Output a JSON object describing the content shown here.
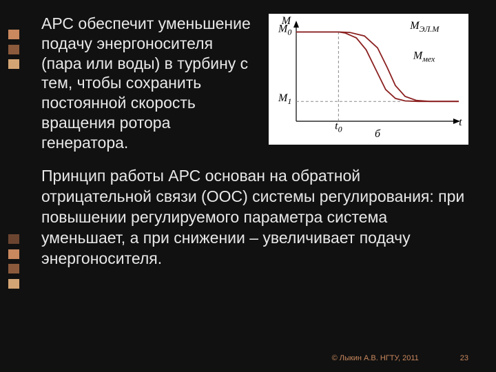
{
  "accent_colors": [
    "#c9885e",
    "#8b5a3c",
    "#d4a574",
    "#6b4430"
  ],
  "paragraphs": {
    "p1": "АРС обеспечит уменьшение подачу энергоносителя (пара или воды) в турбину с тем, чтобы сохранить постоянной скорость вращения ротора генератора.",
    "p2": "Принцип работы АРС основан на обратной отрицательной связи (ООС) системы регулирования: при повышении регулируемого параметра система уменьшает, а при снижении – увеличивает подачу энергоносителя."
  },
  "chart": {
    "type": "line",
    "background_color": "#ffffff",
    "axis_color": "#000000",
    "grid_dash_color": "#888888",
    "curve_colors": {
      "elm": "#8b2020",
      "mech": "#8b2020"
    },
    "text_color": "#000000",
    "font_family": "Times New Roman, serif",
    "label_fontsize": 16,
    "sub_fontsize": 12,
    "xlim": [
      0,
      10
    ],
    "ylim": [
      0,
      10
    ],
    "y_axis_labels": [
      {
        "text": "M",
        "sub": "",
        "y": 9.8,
        "x": -0.9,
        "italic": true
      },
      {
        "text": "M",
        "sub": "0",
        "y": 9.0,
        "x": -1.1,
        "italic": true
      },
      {
        "text": "M",
        "sub": "1",
        "y": 2.0,
        "x": -1.1,
        "italic": true
      }
    ],
    "x_axis_labels": [
      {
        "text": "t",
        "sub": "0",
        "x": 2.6,
        "y": -0.8,
        "italic": true
      },
      {
        "text": "t",
        "sub": "",
        "x": 10.1,
        "y": -0.4,
        "italic": true
      },
      {
        "text": "б",
        "sub": "",
        "x": 5.0,
        "y": -1.6,
        "italic": true
      }
    ],
    "curve_labels": [
      {
        "text": "M",
        "sub": "ЭЛ.М",
        "x": 7.0,
        "y": 9.3,
        "italic": true
      },
      {
        "text": "M",
        "sub": "мех",
        "x": 7.2,
        "y": 6.3,
        "italic": true
      }
    ],
    "guide_lines": [
      {
        "type": "h",
        "y": 9.0,
        "x0": 0,
        "x1": 2.6
      },
      {
        "type": "h",
        "y": 2.0,
        "x0": 0,
        "x1": 6.5
      },
      {
        "type": "v",
        "x": 2.6,
        "y0": 0,
        "y1": 9.0
      }
    ],
    "curves": {
      "elm": [
        {
          "x": 0,
          "y": 9.0
        },
        {
          "x": 2.6,
          "y": 9.0
        },
        {
          "x": 3.0,
          "y": 8.9
        },
        {
          "x": 3.7,
          "y": 8.4
        },
        {
          "x": 4.3,
          "y": 7.2
        },
        {
          "x": 4.9,
          "y": 5.2
        },
        {
          "x": 5.5,
          "y": 3.2
        },
        {
          "x": 6.1,
          "y": 2.3
        },
        {
          "x": 6.7,
          "y": 2.05
        },
        {
          "x": 7.5,
          "y": 2.0
        },
        {
          "x": 10,
          "y": 2.0
        }
      ],
      "mech": [
        {
          "x": 0,
          "y": 9.0
        },
        {
          "x": 2.6,
          "y": 9.0
        },
        {
          "x": 3.3,
          "y": 8.95
        },
        {
          "x": 4.2,
          "y": 8.6
        },
        {
          "x": 5.0,
          "y": 7.4
        },
        {
          "x": 5.6,
          "y": 5.4
        },
        {
          "x": 6.1,
          "y": 3.6
        },
        {
          "x": 6.7,
          "y": 2.5
        },
        {
          "x": 7.4,
          "y": 2.1
        },
        {
          "x": 8.2,
          "y": 2.0
        },
        {
          "x": 10,
          "y": 2.0
        }
      ]
    },
    "line_width": 1.8
  },
  "footer": {
    "copyright": "© Лыкин А.В. НГТУ, 2011",
    "page": "23"
  }
}
